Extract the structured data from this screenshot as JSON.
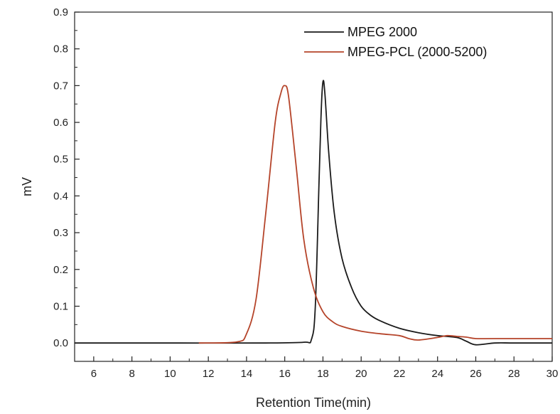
{
  "chart_data": {
    "type": "line",
    "xlabel": "Retention Time(min)",
    "ylabel": "mV",
    "xlim": [
      5,
      30
    ],
    "ylim": [
      -0.05,
      0.9
    ],
    "x_ticks": [
      "6",
      "8",
      "10",
      "12",
      "14",
      "16",
      "18",
      "20",
      "22",
      "24",
      "26",
      "28",
      "30"
    ],
    "y_ticks": [
      "0.0",
      "0.1",
      "0.2",
      "0.3",
      "0.4",
      "0.5",
      "0.6",
      "0.7",
      "0.8",
      "0.9"
    ],
    "grid": false,
    "legend_position": "top-right",
    "series": [
      {
        "name": "MPEG 2000",
        "color": "#1a1a1a",
        "x": [
          5,
          10,
          15,
          17.0,
          17.4,
          17.6,
          17.8,
          17.9,
          18.0,
          18.1,
          18.3,
          18.6,
          19.0,
          19.5,
          20.0,
          20.5,
          21.0,
          22.0,
          23.0,
          24.0,
          25.0,
          25.5,
          26.0,
          27.0,
          28.0,
          30.0
        ],
        "y": [
          0.0,
          0.0,
          0.0,
          0.002,
          0.01,
          0.1,
          0.45,
          0.62,
          0.71,
          0.68,
          0.52,
          0.35,
          0.23,
          0.15,
          0.1,
          0.075,
          0.06,
          0.04,
          0.028,
          0.02,
          0.015,
          0.005,
          -0.005,
          0.0,
          0.0,
          0.0
        ]
      },
      {
        "name": "MPEG-PCL (2000-5200)",
        "color": "#b5442a",
        "x": [
          11.5,
          13.5,
          14.0,
          14.5,
          15.0,
          15.5,
          15.8,
          16.0,
          16.2,
          16.6,
          17.0,
          17.5,
          18.0,
          18.5,
          19.0,
          20.0,
          21.0,
          22.0,
          22.5,
          23.0,
          24.0,
          24.5,
          25.0,
          25.5,
          26.0,
          27.0,
          30.0
        ],
        "y": [
          0.0,
          0.003,
          0.025,
          0.12,
          0.35,
          0.6,
          0.68,
          0.7,
          0.67,
          0.48,
          0.28,
          0.15,
          0.085,
          0.058,
          0.045,
          0.032,
          0.025,
          0.02,
          0.012,
          0.008,
          0.015,
          0.02,
          0.018,
          0.016,
          0.012,
          0.012,
          0.012
        ]
      }
    ]
  }
}
